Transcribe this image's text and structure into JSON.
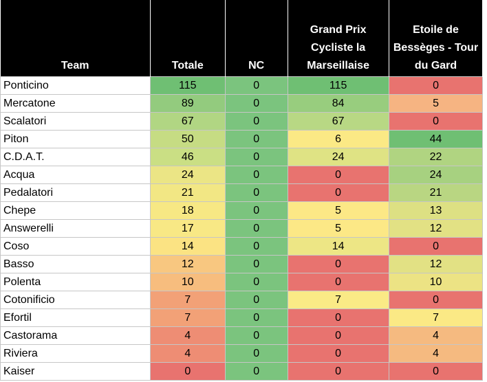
{
  "headers": [
    "Team",
    "Totale",
    "NC",
    "Grand Prix\nCycliste la\nMarseillaise",
    "Etoile de\nBessèges - Tour\ndu Gard"
  ],
  "rows": [
    {
      "team": "Ponticino",
      "values": [
        "115",
        "0",
        "115",
        "0"
      ],
      "colors": [
        "#6fbf73",
        "#7bc47e",
        "#6fbf73",
        "#e8736f"
      ]
    },
    {
      "team": "Mercatone",
      "values": [
        "89",
        "0",
        "84",
        "5"
      ],
      "colors": [
        "#93cb7e",
        "#7bc47e",
        "#98cd7e",
        "#f6b482"
      ]
    },
    {
      "team": "Scalatori",
      "values": [
        "67",
        "0",
        "67",
        "0"
      ],
      "colors": [
        "#b1d683",
        "#7bc47e",
        "#b8d884",
        "#e8736f"
      ]
    },
    {
      "team": "Piton",
      "values": [
        "50",
        "0",
        "6",
        "44"
      ],
      "colors": [
        "#c6dc83",
        "#7bc47e",
        "#fbe985",
        "#6fbf73"
      ]
    },
    {
      "team": "C.D.A.T.",
      "values": [
        "46",
        "0",
        "24",
        "22"
      ],
      "colors": [
        "#cadf84",
        "#7bc47e",
        "#dfe384",
        "#b0d481"
      ]
    },
    {
      "team": "Acqua",
      "values": [
        "24",
        "0",
        "0",
        "24"
      ],
      "colors": [
        "#ebe585",
        "#7bc47e",
        "#e8736f",
        "#a7d180"
      ]
    },
    {
      "team": "Pedalatori",
      "values": [
        "21",
        "0",
        "0",
        "21"
      ],
      "colors": [
        "#f2e784",
        "#7bc47e",
        "#e8736f",
        "#b9d682"
      ]
    },
    {
      "team": "Chepe",
      "values": [
        "18",
        "0",
        "5",
        "13"
      ],
      "colors": [
        "#f7e884",
        "#7bc47e",
        "#fce886",
        "#dde083"
      ]
    },
    {
      "team": "Answerelli",
      "values": [
        "17",
        "0",
        "5",
        "12"
      ],
      "colors": [
        "#f8e885",
        "#7bc47e",
        "#fce886",
        "#e2e184"
      ]
    },
    {
      "team": "Coso",
      "values": [
        "14",
        "0",
        "14",
        "0"
      ],
      "colors": [
        "#fbe383",
        "#7bc47e",
        "#ede685",
        "#e8736f"
      ]
    },
    {
      "team": "Basso",
      "values": [
        "12",
        "0",
        "0",
        "12"
      ],
      "colors": [
        "#f8c780",
        "#7bc47e",
        "#e8736f",
        "#e2e184"
      ]
    },
    {
      "team": "Polenta",
      "values": [
        "10",
        "0",
        "0",
        "10"
      ],
      "colors": [
        "#f7bd7e",
        "#7bc47e",
        "#e8736f",
        "#ece384"
      ]
    },
    {
      "team": "Cotonificio",
      "values": [
        "7",
        "0",
        "7",
        "0"
      ],
      "colors": [
        "#f2a177",
        "#7bc47e",
        "#faea86",
        "#e8736f"
      ]
    },
    {
      "team": "Efortil",
      "values": [
        "7",
        "0",
        "0",
        "7"
      ],
      "colors": [
        "#f2a177",
        "#7bc47e",
        "#e8736f",
        "#fbe985"
      ]
    },
    {
      "team": "Castorama",
      "values": [
        "4",
        "0",
        "0",
        "4"
      ],
      "colors": [
        "#ee8d74",
        "#7bc47e",
        "#e8736f",
        "#f5ba80"
      ]
    },
    {
      "team": "Riviera",
      "values": [
        "4",
        "0",
        "0",
        "4"
      ],
      "colors": [
        "#ee8d74",
        "#7bc47e",
        "#e8736f",
        "#f5ba80"
      ]
    },
    {
      "team": "Kaiser",
      "values": [
        "0",
        "0",
        "0",
        "0"
      ],
      "colors": [
        "#e8736f",
        "#7bc47e",
        "#e8736f",
        "#e8736f"
      ]
    }
  ]
}
